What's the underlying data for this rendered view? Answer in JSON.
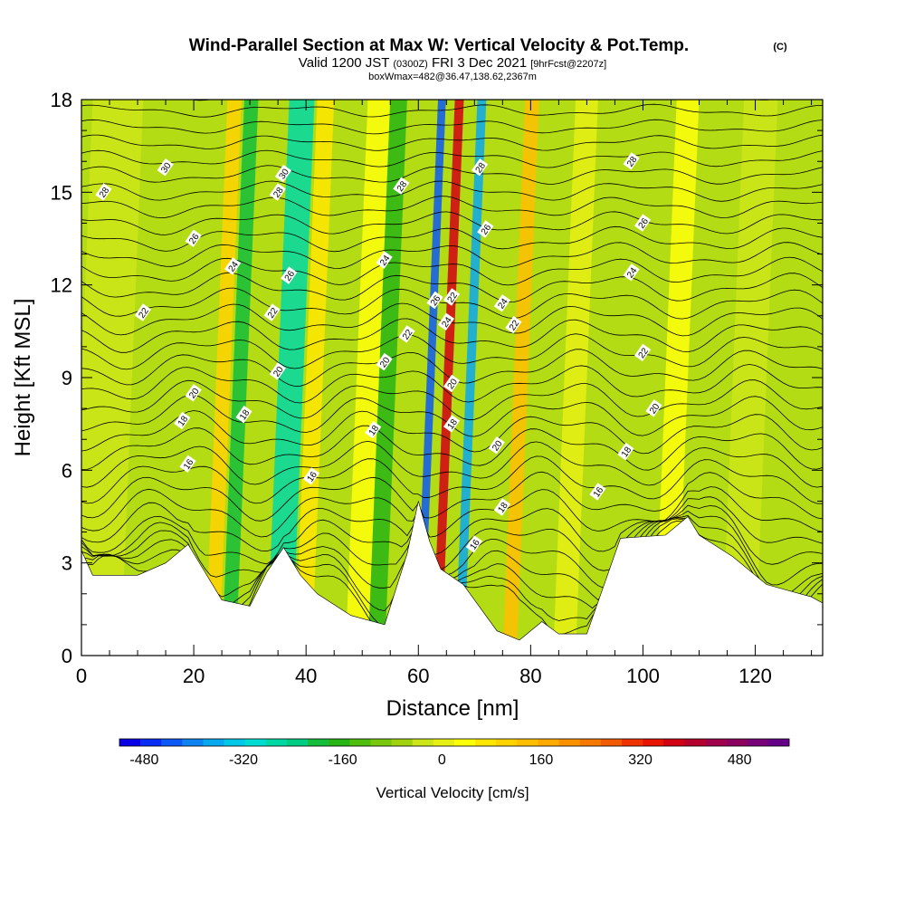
{
  "chart_data": {
    "type": "heatmap",
    "title": {
      "main": "Wind-Parallel Section at Max W: Vertical Velocity & Pot.Temp.",
      "main_tag": "(C)",
      "valid_prefix": "Valid 1200 JST",
      "valid_utc": "(0300Z)",
      "valid_date": "FRI 3 Dec 2021",
      "forecast": "[9hrFcst@2207z]",
      "box_info": "boxWmax=482@36.47,138.62,2367m"
    },
    "xlabel": "Distance [nm]",
    "ylabel": "Height [Kft MSL]",
    "x_range": [
      0,
      132
    ],
    "y_range": [
      0,
      18
    ],
    "x_ticks": [
      "0",
      "20",
      "40",
      "60",
      "80",
      "100",
      "120"
    ],
    "y_ticks": [
      "0",
      "3",
      "6",
      "9",
      "12",
      "15",
      "18"
    ],
    "colorbar": {
      "label": "Vertical Velocity [cm/s]",
      "tick_labels": [
        "-480",
        "-320",
        "-160",
        "0",
        "160",
        "320",
        "480"
      ],
      "min": -520,
      "max": 560,
      "step": 40,
      "colors": [
        "#0a00e6",
        "#0a2cf5",
        "#0c58f5",
        "#0d82f0",
        "#08a8ef",
        "#00c8e6",
        "#00dcd2",
        "#00d8a4",
        "#00cc82",
        "#14bd3c",
        "#28b414",
        "#50be0f",
        "#78c80f",
        "#a0d20f",
        "#cce619",
        "#e6f014",
        "#ffff0a",
        "#ffe600",
        "#ffd200",
        "#ffbe00",
        "#ffaa00",
        "#fa9100",
        "#f57800",
        "#f05a00",
        "#f03200",
        "#e61400",
        "#d20014",
        "#b4002d",
        "#a0004b",
        "#8c005f",
        "#780078",
        "#640087"
      ]
    },
    "terrain_kft": [
      [
        0,
        3.4
      ],
      [
        2,
        2.6
      ],
      [
        10,
        2.6
      ],
      [
        15,
        3.0
      ],
      [
        19,
        3.6
      ],
      [
        22,
        2.7
      ],
      [
        25,
        1.8
      ],
      [
        30,
        1.6
      ],
      [
        33,
        2.7
      ],
      [
        36,
        3.5
      ],
      [
        39,
        2.6
      ],
      [
        42,
        2.0
      ],
      [
        48,
        1.3
      ],
      [
        54,
        1.0
      ],
      [
        58,
        3.3
      ],
      [
        60,
        5.0
      ],
      [
        62,
        3.7
      ],
      [
        64,
        2.8
      ],
      [
        68,
        2.3
      ],
      [
        70,
        1.8
      ],
      [
        74,
        0.8
      ],
      [
        78,
        0.5
      ],
      [
        82,
        1.1
      ],
      [
        85,
        0.7
      ],
      [
        90,
        0.7
      ],
      [
        96,
        3.8
      ],
      [
        104,
        3.9
      ],
      [
        108,
        4.5
      ],
      [
        110,
        3.9
      ],
      [
        116,
        3.2
      ],
      [
        122,
        2.3
      ],
      [
        130,
        1.9
      ],
      [
        132,
        1.7
      ]
    ],
    "vertical_velocity_bands": [
      {
        "x": 0.0,
        "w": 9,
        "val": 40
      },
      {
        "x": 24.0,
        "w": 2.5,
        "val": 200
      },
      {
        "x": 27.0,
        "w": 2.5,
        "val": -160
      },
      {
        "x": 35.0,
        "w": 4.5,
        "val": -240
      },
      {
        "x": 40.0,
        "w": 3.0,
        "val": 160
      },
      {
        "x": 49.0,
        "w": 4.0,
        "val": 120
      },
      {
        "x": 53.0,
        "w": 3.0,
        "val": -120
      },
      {
        "x": 61.5,
        "w": 1.4,
        "val": -440
      },
      {
        "x": 64.5,
        "w": 1.6,
        "val": 520
      },
      {
        "x": 68.5,
        "w": 1.6,
        "val": -360
      },
      {
        "x": 77.0,
        "w": 2.5,
        "val": 240
      },
      {
        "x": 86.0,
        "w": 4.0,
        "val": 80
      },
      {
        "x": 104.0,
        "w": 4.0,
        "val": 120
      },
      {
        "x": 116.0,
        "w": 6.0,
        "val": 40
      }
    ],
    "theta_contour_labels": [
      {
        "x": 15,
        "y": 15.8,
        "text": "30"
      },
      {
        "x": 36,
        "y": 15.6,
        "text": "30"
      },
      {
        "x": 4,
        "y": 15.0,
        "text": "28"
      },
      {
        "x": 35,
        "y": 15.0,
        "text": "28"
      },
      {
        "x": 57,
        "y": 15.2,
        "text": "28"
      },
      {
        "x": 71,
        "y": 15.8,
        "text": "28"
      },
      {
        "x": 98,
        "y": 16.0,
        "text": "28"
      },
      {
        "x": 20,
        "y": 13.5,
        "text": "26"
      },
      {
        "x": 72,
        "y": 13.8,
        "text": "26"
      },
      {
        "x": 100,
        "y": 14.0,
        "text": "26"
      },
      {
        "x": 63,
        "y": 11.5,
        "text": "26"
      },
      {
        "x": 27,
        "y": 12.6,
        "text": "24"
      },
      {
        "x": 54,
        "y": 12.8,
        "text": "24"
      },
      {
        "x": 75,
        "y": 11.4,
        "text": "24"
      },
      {
        "x": 98,
        "y": 12.4,
        "text": "24"
      },
      {
        "x": 37,
        "y": 12.3,
        "text": "26"
      },
      {
        "x": 11,
        "y": 11.1,
        "text": "22"
      },
      {
        "x": 34,
        "y": 11.1,
        "text": "22"
      },
      {
        "x": 58,
        "y": 10.4,
        "text": "22"
      },
      {
        "x": 66,
        "y": 11.6,
        "text": "22"
      },
      {
        "x": 77,
        "y": 10.7,
        "text": "22"
      },
      {
        "x": 100,
        "y": 9.8,
        "text": "22"
      },
      {
        "x": 65,
        "y": 10.8,
        "text": "24"
      },
      {
        "x": 20,
        "y": 8.5,
        "text": "20"
      },
      {
        "x": 35,
        "y": 9.2,
        "text": "20"
      },
      {
        "x": 54,
        "y": 9.5,
        "text": "20"
      },
      {
        "x": 66,
        "y": 8.8,
        "text": "20"
      },
      {
        "x": 74,
        "y": 6.8,
        "text": "20"
      },
      {
        "x": 102,
        "y": 8.0,
        "text": "20"
      },
      {
        "x": 18,
        "y": 7.6,
        "text": "18"
      },
      {
        "x": 29,
        "y": 7.8,
        "text": "18"
      },
      {
        "x": 52,
        "y": 7.3,
        "text": "18"
      },
      {
        "x": 66,
        "y": 7.5,
        "text": "18"
      },
      {
        "x": 75,
        "y": 4.8,
        "text": "18"
      },
      {
        "x": 97,
        "y": 6.6,
        "text": "18"
      },
      {
        "x": 19,
        "y": 6.2,
        "text": "16"
      },
      {
        "x": 41,
        "y": 5.8,
        "text": "16"
      },
      {
        "x": 92,
        "y": 5.3,
        "text": "16"
      },
      {
        "x": 70,
        "y": 3.6,
        "text": "16"
      }
    ]
  }
}
